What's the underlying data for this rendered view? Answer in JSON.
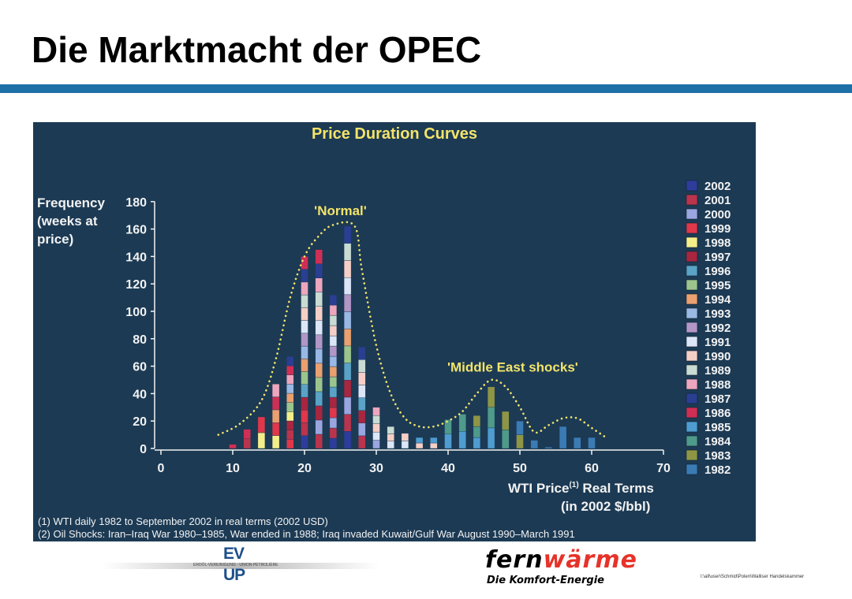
{
  "slide": {
    "title": "Die Marktmacht der OPEC",
    "file_path": "I:\\all\\user\\Schmid\\Polen\\Walliser Handelskammer"
  },
  "logos": {
    "evup_line1": "EV",
    "evup_line2": "UP",
    "evup_small": "ERDÖL-VEREINIGUNG · UNION PÉTROLIÈRE",
    "fernwaerme_part1": "fern",
    "fernwaerme_part2": "wärme",
    "fernwaerme_tagline": "Die Komfort-Energie"
  },
  "colors": {
    "title_bar": "#1d6fa8",
    "panel_bg": "#1c3a54",
    "title_text": "#f3e46a",
    "envelope": "#f3e46a"
  },
  "chart_data": {
    "type": "bar",
    "stacked": true,
    "title": "Price Duration Curves",
    "ylabel_lines": [
      "Frequency",
      "(weeks at",
      "price)"
    ],
    "xlabel_line1": "WTI Price",
    "xlabel_sup": "(1)",
    "xlabel_line1b": " Real Terms",
    "xlabel_line2": "(in 2002 $/bbl)",
    "ylim": [
      0,
      180
    ],
    "xlim": [
      0,
      70
    ],
    "y_ticks": [
      0,
      20,
      40,
      60,
      80,
      100,
      120,
      140,
      160,
      180
    ],
    "x_ticks": [
      0,
      10,
      20,
      30,
      40,
      50,
      60,
      70
    ],
    "grid": false,
    "legend_position": "right",
    "legend": [
      {
        "label": "2002",
        "color": "#2e3d9b"
      },
      {
        "label": "2001",
        "color": "#b9344c"
      },
      {
        "label": "2000",
        "color": "#9aa6df"
      },
      {
        "label": "1999",
        "color": "#e0374a"
      },
      {
        "label": "1998",
        "color": "#f4ee8a"
      },
      {
        "label": "1997",
        "color": "#a8263f"
      },
      {
        "label": "1996",
        "color": "#5aa3c6"
      },
      {
        "label": "1995",
        "color": "#9cc58e"
      },
      {
        "label": "1994",
        "color": "#eaa06f"
      },
      {
        "label": "1993",
        "color": "#9ab8e4"
      },
      {
        "label": "1992",
        "color": "#b296c6"
      },
      {
        "label": "1991",
        "color": "#dce6f6"
      },
      {
        "label": "1990",
        "color": "#f5cfc6"
      },
      {
        "label": "1989",
        "color": "#c9dbd2"
      },
      {
        "label": "1988",
        "color": "#eda6bd"
      },
      {
        "label": "1987",
        "color": "#2a3f91"
      },
      {
        "label": "1986",
        "color": "#cf2f55"
      },
      {
        "label": "1985",
        "color": "#4f9cd0"
      },
      {
        "label": "1984",
        "color": "#4f9a8a"
      },
      {
        "label": "1983",
        "color": "#8e9545"
      },
      {
        "label": "1982",
        "color": "#3b7bb4"
      }
    ],
    "bars": [
      {
        "x": 10,
        "total": 3,
        "years": [
          "1986"
        ]
      },
      {
        "x": 12,
        "total": 14,
        "years": [
          "2001",
          "1986"
        ]
      },
      {
        "x": 14,
        "total": 23,
        "years": [
          "1998",
          "1999"
        ]
      },
      {
        "x": 16,
        "total": 47,
        "years": [
          "1998",
          "1999",
          "1994",
          "1986",
          "1988"
        ]
      },
      {
        "x": 18,
        "total": 67,
        "years": [
          "1999",
          "2001",
          "1997",
          "1998",
          "1995",
          "1994",
          "1993",
          "1988",
          "1986",
          "1987"
        ]
      },
      {
        "x": 20,
        "total": 140,
        "years": [
          "2002",
          "2001",
          "1999",
          "1997",
          "1996",
          "1995",
          "1994",
          "1993",
          "1992",
          "1991",
          "1990",
          "1989",
          "1988",
          "1987",
          "1986"
        ]
      },
      {
        "x": 22,
        "total": 145,
        "years": [
          "2001",
          "2000",
          "1997",
          "1996",
          "1995",
          "1994",
          "1993",
          "1992",
          "1991",
          "1990",
          "1989",
          "1988",
          "1987",
          "1986"
        ]
      },
      {
        "x": 24,
        "total": 112,
        "years": [
          "2002",
          "2001",
          "2000",
          "1999",
          "1997",
          "1996",
          "1995",
          "1994",
          "1993",
          "1992",
          "1991",
          "1990",
          "1989",
          "1988",
          "1987"
        ]
      },
      {
        "x": 26,
        "total": 162,
        "years": [
          "2002",
          "2001",
          "2000",
          "1997",
          "1996",
          "1995",
          "1994",
          "1993",
          "1992",
          "1991",
          "1990",
          "1989",
          "1987"
        ]
      },
      {
        "x": 28,
        "total": 74,
        "years": [
          "2001",
          "2000",
          "1997",
          "1996",
          "1991",
          "1990",
          "1989",
          "1987"
        ]
      },
      {
        "x": 30,
        "total": 30,
        "years": [
          "2000",
          "1991",
          "1990",
          "1989",
          "1988"
        ]
      },
      {
        "x": 32,
        "total": 16,
        "years": [
          "1991",
          "1990",
          "1989"
        ]
      },
      {
        "x": 34,
        "total": 11,
        "years": [
          "1991",
          "1990"
        ]
      },
      {
        "x": 36,
        "total": 8,
        "years": [
          "1990",
          "1985"
        ]
      },
      {
        "x": 38,
        "total": 8,
        "years": [
          "1990",
          "1985"
        ]
      },
      {
        "x": 40,
        "total": 21,
        "years": [
          "1985",
          "1984"
        ]
      },
      {
        "x": 42,
        "total": 25,
        "years": [
          "1985",
          "1984"
        ]
      },
      {
        "x": 44,
        "total": 24,
        "years": [
          "1985",
          "1984",
          "1983"
        ]
      },
      {
        "x": 46,
        "total": 45,
        "years": [
          "1985",
          "1984",
          "1983"
        ]
      },
      {
        "x": 48,
        "total": 27,
        "years": [
          "1984",
          "1983"
        ]
      },
      {
        "x": 50,
        "total": 20,
        "years": [
          "1983",
          "1982"
        ]
      },
      {
        "x": 52,
        "total": 6,
        "years": [
          "1982"
        ]
      },
      {
        "x": 54,
        "total": 1,
        "years": [
          "1982"
        ]
      },
      {
        "x": 56,
        "total": 16,
        "years": [
          "1982"
        ]
      },
      {
        "x": 58,
        "total": 8,
        "years": [
          "1982"
        ]
      },
      {
        "x": 60,
        "total": 8,
        "years": [
          "1982"
        ]
      }
    ],
    "envelope": [
      [
        8,
        10
      ],
      [
        11,
        18
      ],
      [
        14,
        35
      ],
      [
        16,
        65
      ],
      [
        18,
        110
      ],
      [
        20,
        140
      ],
      [
        22,
        155
      ],
      [
        24,
        163
      ],
      [
        27,
        162
      ],
      [
        28,
        130
      ],
      [
        30,
        75
      ],
      [
        32,
        40
      ],
      [
        34,
        22
      ],
      [
        36,
        16
      ],
      [
        38,
        16
      ],
      [
        40,
        20
      ],
      [
        42,
        27
      ],
      [
        44,
        40
      ],
      [
        46,
        50
      ],
      [
        48,
        45
      ],
      [
        50,
        30
      ],
      [
        52,
        12
      ],
      [
        54,
        17
      ],
      [
        56,
        22
      ],
      [
        58,
        22
      ],
      [
        60,
        15
      ],
      [
        62,
        8
      ]
    ],
    "annotations": [
      {
        "text": "'Normal'",
        "x": 25,
        "y": 170
      },
      {
        "text": "'Middle East shocks'",
        "x": 49,
        "y": 56
      }
    ],
    "footnotes": [
      "(1) WTI daily 1982 to September 2002 in real terms (2002 USD)",
      "(2) Oil Shocks:  Iran–Iraq War 1980–1985, War ended in 1988; Iraq invaded Kuwait/Gulf War August 1990–March 1991"
    ]
  }
}
